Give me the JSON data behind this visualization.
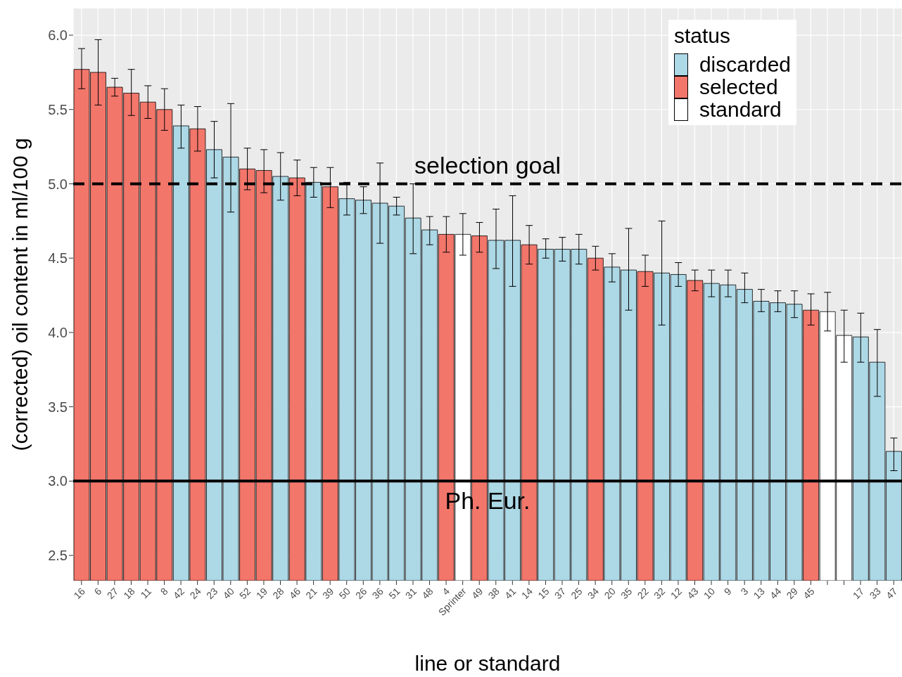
{
  "chart_data": {
    "type": "bar",
    "stacked": true,
    "xlabel": "line or standard",
    "ylabel": "(corrected) oil content in ml/100 g",
    "legend_title": "status",
    "legend": "top right",
    "grid": true,
    "categories": [
      "16",
      "6",
      "27",
      "18",
      "11",
      "8",
      "42",
      "24",
      "23",
      "40",
      "52",
      "19",
      "28",
      "46",
      "21",
      "39",
      "50",
      "26",
      "36",
      "51",
      "31",
      "48",
      "4",
      "Sprinter",
      "49",
      "38",
      "41",
      "14",
      "15",
      "37",
      "25",
      "34",
      "20",
      "35",
      "22",
      "32",
      "12",
      "43",
      "10",
      "9",
      "3",
      "13",
      "44",
      "29",
      "45",
      null,
      null,
      "17",
      "33",
      "47"
    ],
    "ylim": [
      2.33,
      6.18
    ],
    "yticks": [
      {
        "value": 2.5,
        "label": "2.5"
      },
      {
        "value": 3,
        "label": "3.0"
      },
      {
        "value": 3.5,
        "label": "3.5"
      },
      {
        "value": 4,
        "label": "4.0"
      },
      {
        "value": 4.5,
        "label": "4.5"
      },
      {
        "value": 5,
        "label": "5.0"
      },
      {
        "value": 5.5,
        "label": "5.5"
      },
      {
        "value": 6,
        "label": "6.0"
      }
    ],
    "series": [
      {
        "name": "discarded",
        "color": "#add8e6",
        "values": [
          null,
          null,
          null,
          null,
          null,
          null,
          5.39,
          null,
          5.23,
          5.18,
          null,
          null,
          5.05,
          null,
          5.01,
          null,
          4.9,
          4.89,
          4.87,
          4.85,
          4.77,
          4.69,
          null,
          null,
          null,
          4.62,
          4.62,
          null,
          4.56,
          4.56,
          4.56,
          null,
          4.44,
          4.42,
          null,
          4.4,
          4.39,
          null,
          4.33,
          4.32,
          4.29,
          4.21,
          4.2,
          4.19,
          null,
          null,
          null,
          3.97,
          3.8,
          3.2
        ],
        "errors": [
          null,
          null,
          null,
          null,
          null,
          null,
          [
            5.24,
            5.53
          ],
          null,
          [
            5.04,
            5.42
          ],
          [
            4.81,
            5.54
          ],
          null,
          null,
          [
            4.89,
            5.21
          ],
          null,
          [
            4.91,
            5.11
          ],
          null,
          [
            4.79,
            5.01
          ],
          [
            4.8,
            4.98
          ],
          [
            4.6,
            5.14
          ],
          [
            4.79,
            4.91
          ],
          [
            4.53,
            5.0
          ],
          [
            4.59,
            4.78
          ],
          null,
          null,
          null,
          [
            4.43,
            4.83
          ],
          [
            4.31,
            4.92
          ],
          null,
          [
            4.5,
            4.63
          ],
          [
            4.48,
            4.64
          ],
          [
            4.46,
            4.66
          ],
          null,
          [
            4.34,
            4.53
          ],
          [
            4.15,
            4.7
          ],
          null,
          [
            4.05,
            4.75
          ],
          [
            4.31,
            4.47
          ],
          null,
          [
            4.24,
            4.42
          ],
          [
            4.24,
            4.42
          ],
          [
            4.2,
            4.4
          ],
          [
            4.14,
            4.29
          ],
          [
            4.14,
            4.28
          ],
          [
            4.1,
            4.28
          ],
          null,
          null,
          null,
          [
            3.8,
            4.13
          ],
          [
            3.57,
            4.02
          ],
          [
            3.07,
            3.29
          ]
        ]
      },
      {
        "name": "selected",
        "color": "#f3766b",
        "values": [
          5.77,
          5.75,
          5.65,
          5.61,
          5.55,
          5.5,
          null,
          5.37,
          null,
          null,
          5.1,
          5.09,
          null,
          5.04,
          null,
          4.98,
          null,
          null,
          null,
          null,
          null,
          null,
          4.66,
          null,
          4.65,
          null,
          null,
          4.59,
          null,
          null,
          null,
          4.5,
          null,
          null,
          4.41,
          null,
          null,
          4.35,
          null,
          null,
          null,
          null,
          null,
          null,
          4.15,
          null,
          null,
          null,
          null,
          null
        ],
        "errors": [
          [
            5.64,
            5.91
          ],
          [
            5.53,
            5.97
          ],
          [
            5.59,
            5.71
          ],
          [
            5.46,
            5.77
          ],
          [
            5.44,
            5.66
          ],
          [
            5.36,
            5.64
          ],
          null,
          [
            5.22,
            5.52
          ],
          null,
          null,
          [
            4.96,
            5.24
          ],
          [
            4.94,
            5.23
          ],
          null,
          [
            4.92,
            5.16
          ],
          null,
          [
            4.84,
            5.11
          ],
          null,
          null,
          null,
          null,
          null,
          null,
          [
            4.54,
            4.78
          ],
          null,
          [
            4.54,
            4.74
          ],
          null,
          null,
          [
            4.46,
            4.72
          ],
          null,
          null,
          null,
          [
            4.42,
            4.58
          ],
          null,
          null,
          [
            4.31,
            4.52
          ],
          null,
          null,
          [
            4.28,
            4.42
          ],
          null,
          null,
          null,
          null,
          null,
          null,
          [
            4.05,
            4.26
          ],
          null,
          null,
          null,
          null,
          null
        ]
      },
      {
        "name": "standard",
        "color": "#ffffff",
        "values": [
          null,
          null,
          null,
          null,
          null,
          null,
          null,
          null,
          null,
          null,
          null,
          null,
          null,
          null,
          null,
          null,
          null,
          null,
          null,
          null,
          null,
          null,
          null,
          4.66,
          null,
          null,
          null,
          null,
          null,
          null,
          null,
          null,
          null,
          null,
          null,
          null,
          null,
          null,
          null,
          null,
          null,
          null,
          null,
          null,
          null,
          4.14,
          3.98,
          null,
          null,
          null
        ],
        "errors": [
          null,
          null,
          null,
          null,
          null,
          null,
          null,
          null,
          null,
          null,
          null,
          null,
          null,
          null,
          null,
          null,
          null,
          null,
          null,
          null,
          null,
          null,
          null,
          [
            4.52,
            4.8
          ],
          null,
          null,
          null,
          null,
          null,
          null,
          null,
          null,
          null,
          null,
          null,
          null,
          null,
          null,
          null,
          null,
          null,
          null,
          null,
          null,
          null,
          [
            4.01,
            4.27
          ],
          [
            3.8,
            4.15
          ],
          null,
          null,
          null
        ]
      }
    ],
    "ref_lines": [
      {
        "axis": "y",
        "value": 5,
        "label": "selection goal",
        "line_style": "dashed",
        "color": "#000000"
      },
      {
        "axis": "y",
        "value": 3,
        "label": "Ph. Eur.",
        "line_style": "solid",
        "color": "#000000"
      }
    ]
  }
}
